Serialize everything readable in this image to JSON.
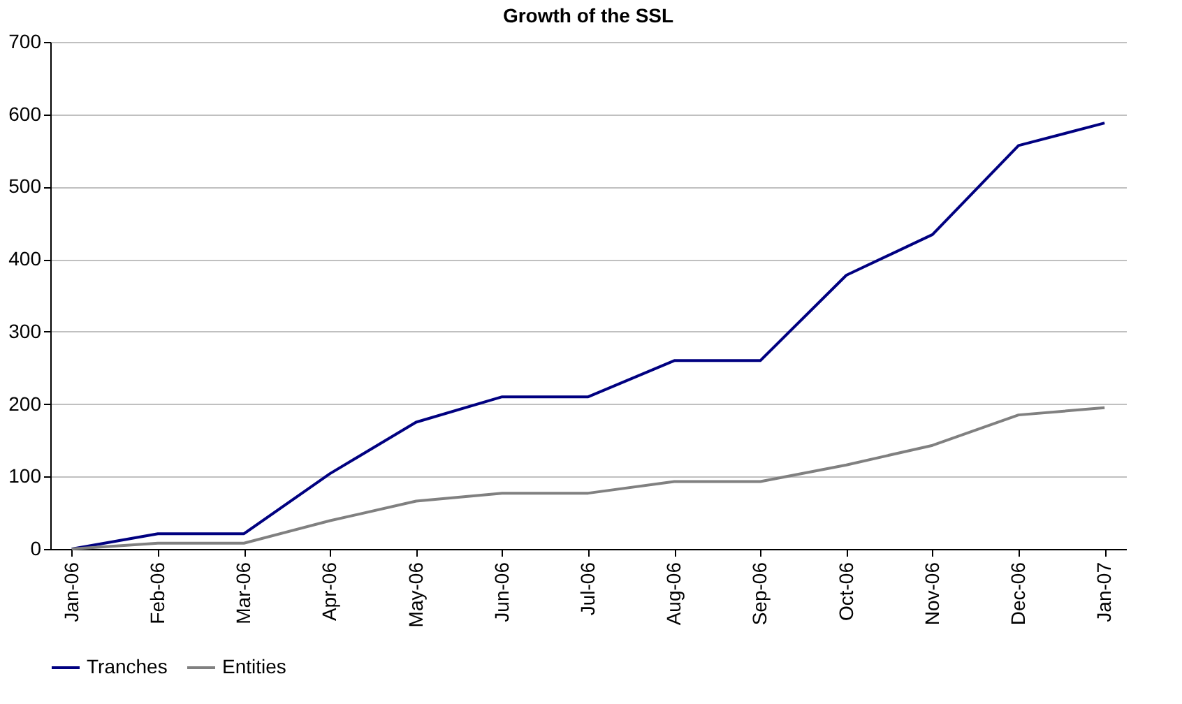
{
  "chart_data": {
    "type": "line",
    "title": "Growth of the SSL",
    "categories": [
      "Jan-06",
      "Feb-06",
      "Mar-06",
      "Apr-06",
      "May-06",
      "Jun-06",
      "Jul-06",
      "Aug-06",
      "Sep-06",
      "Oct-06",
      "Nov-06",
      "Dec-06",
      "Jan-07"
    ],
    "series": [
      {
        "name": "Tranches",
        "color": "#000080",
        "values": [
          0,
          21,
          21,
          104,
          175,
          210,
          210,
          260,
          260,
          378,
          434,
          557,
          588
        ]
      },
      {
        "name": "Entities",
        "color": "#808080",
        "values": [
          0,
          8,
          8,
          39,
          66,
          77,
          77,
          93,
          93,
          116,
          143,
          185,
          195
        ]
      }
    ],
    "ylim": [
      0,
      700
    ],
    "yticks": [
      0,
      100,
      200,
      300,
      400,
      500,
      600,
      700
    ],
    "grid": "y",
    "legend": "bottom",
    "marker": "none",
    "line_style": "solid"
  }
}
